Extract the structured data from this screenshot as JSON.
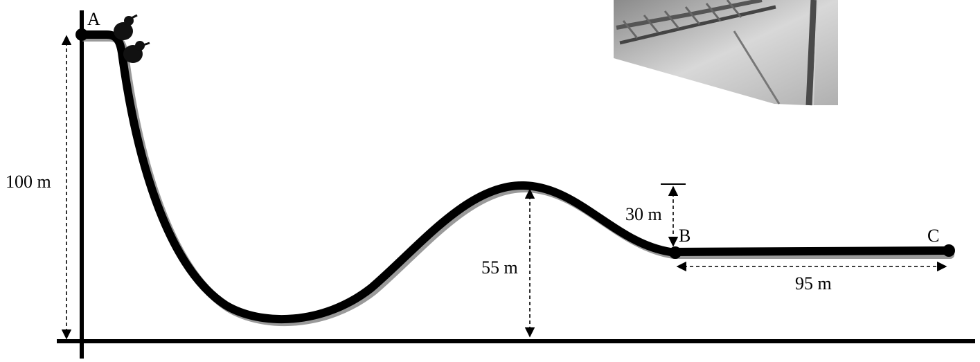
{
  "points": {
    "a": "A",
    "b": "B",
    "c": "C"
  },
  "dimensions": {
    "start_height": "100 m",
    "hill_height": "55 m",
    "drop_to_b": "30 m",
    "run_length": "95 m"
  },
  "photo": {
    "subject": "roller coaster track structure"
  },
  "colors": {
    "track": "#000000",
    "shadow": "#9a9a9a",
    "background": "#ffffff"
  }
}
